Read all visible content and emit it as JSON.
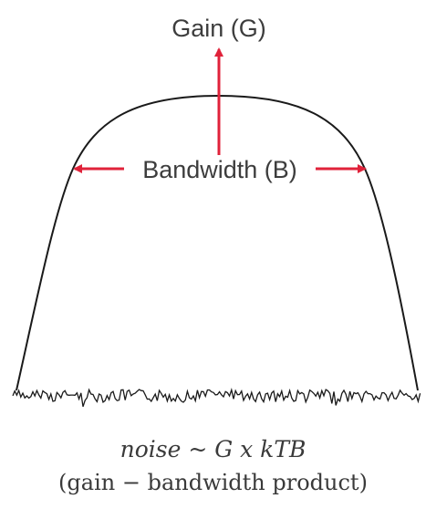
{
  "diagram": {
    "gain_label": "Gain (G)",
    "bandwidth_label": "Bandwidth (B)",
    "formula": "noise ~ G x kTB",
    "caption": "(gain − bandwidth product)",
    "colors": {
      "arrow": "#e0223a",
      "curve": "#1a1a1a",
      "text": "#3d3d3d"
    }
  }
}
